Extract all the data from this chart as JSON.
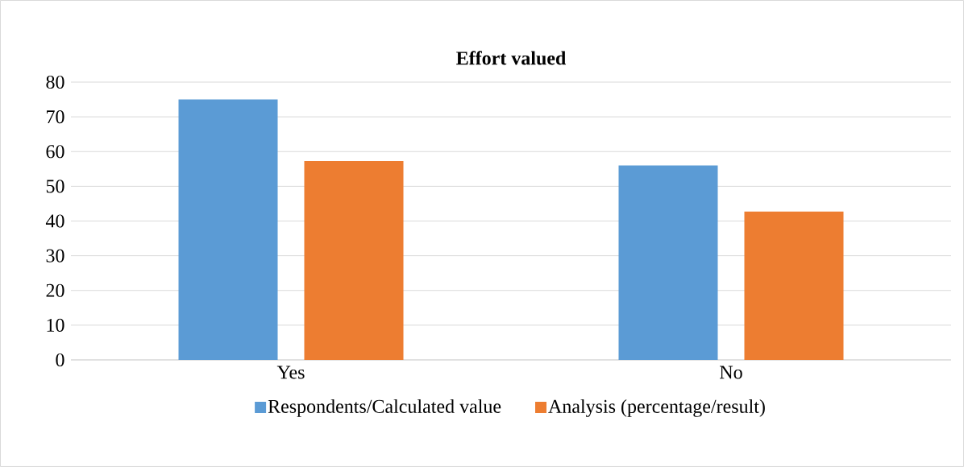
{
  "chart_data": {
    "type": "bar",
    "title": "Effort valued",
    "categories": [
      "Yes",
      "No"
    ],
    "series": [
      {
        "name": "Respondents/Calculated value",
        "color": "#5b9bd5",
        "values": [
          75,
          56
        ]
      },
      {
        "name": "Analysis (percentage/result)",
        "color": "#ed7d31",
        "values": [
          57.25,
          42.75
        ]
      }
    ],
    "ylim": [
      0,
      80
    ],
    "yticks": [
      0,
      10,
      20,
      30,
      40,
      50,
      60,
      70,
      80
    ],
    "grid": "y",
    "legend": "bottom"
  }
}
